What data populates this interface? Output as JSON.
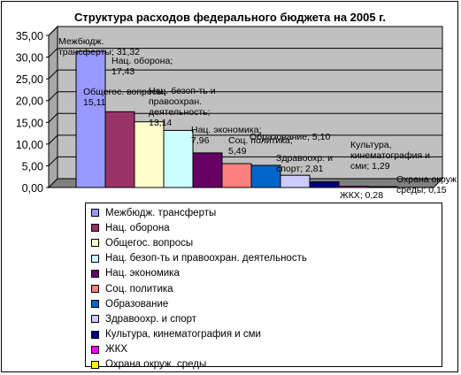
{
  "chart_data": {
    "type": "bar",
    "title": "Структура расходов федерального бюджета на 2005 г.",
    "xlabel": "",
    "ylabel": "",
    "ylim": [
      0,
      35
    ],
    "yticks": [
      "0,00",
      "5,00",
      "10,00",
      "15,00",
      "20,00",
      "25,00",
      "30,00",
      "35,00"
    ],
    "grid": true,
    "legend_position": "bottom",
    "categories": [
      "Межбюдж. трансферты",
      "Нац. оборона",
      "Общегос. вопросы",
      "Нац. безоп-ть и правоохран. деятельность",
      "Нац. экономика",
      "Соц. политика",
      "Образование",
      "Здравоохр. и спорт",
      "Культура, кинематография и сми",
      "ЖКХ",
      "Охрана окруж. среды"
    ],
    "values": [
      31.32,
      17.43,
      15.11,
      13.14,
      7.96,
      5.49,
      5.1,
      2.81,
      1.29,
      0.28,
      0.15
    ],
    "data_labels": [
      "Межбюдж. трансферты; 31,32",
      "Нац. оборона; 17,43",
      "Общегос. вопросы; 15,11",
      "Нац. безоп-ть и правоохран. деятельность; 13,14",
      "Нац. экономика; 7,96",
      "Соц. политика; 5,49",
      "Образование; 5,10",
      "Здравоохр. и спорт; 2,81",
      "Культура, кинематография и сми; 1,29",
      "ЖКХ; 0,28",
      "Охрана окруж. среды; 0,15"
    ],
    "colors": [
      "#9999ff",
      "#993366",
      "#ffffcc",
      "#ccffff",
      "#660066",
      "#ff8080",
      "#0066cc",
      "#ccccff",
      "#000080",
      "#ff00ff",
      "#ffff00"
    ],
    "plot_background": "#c0c0c0"
  }
}
